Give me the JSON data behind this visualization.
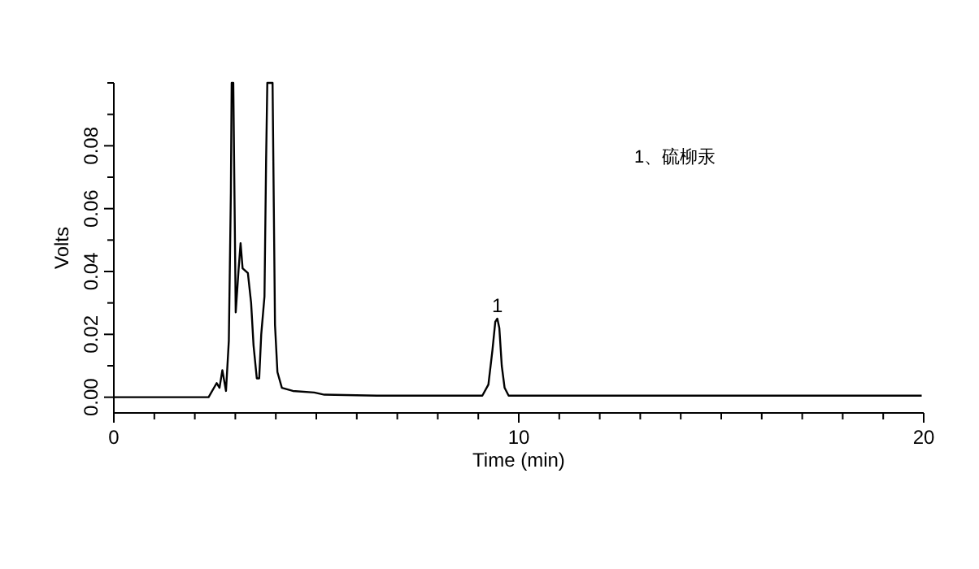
{
  "chart_data": {
    "type": "line",
    "xlabel": "Time (min)",
    "ylabel": "Volts",
    "x": [
      0,
      2.34,
      2.54,
      2.61,
      2.68,
      2.77,
      2.84,
      2.89,
      2.91,
      2.95,
      3.01,
      3.08,
      3.13,
      3.18,
      3.31,
      3.39,
      3.45,
      3.53,
      3.59,
      3.64,
      3.72,
      3.76,
      3.79,
      3.92,
      3.98,
      4.04,
      4.15,
      4.42,
      4.95,
      5.2,
      6.5,
      7.5,
      9.1,
      9.25,
      9.35,
      9.42,
      9.47,
      9.52,
      9.58,
      9.65,
      9.75,
      19.95
    ],
    "series": [
      {
        "color": "#000000",
        "values": [
          0,
          0,
          0.0045,
          0.003,
          0.0086,
          0.002,
          0.018,
          0.065,
          0.1,
          0.1,
          0.027,
          0.0405,
          0.049,
          0.041,
          0.0395,
          0.03,
          0.0165,
          0.006,
          0.006,
          0.02,
          0.032,
          0.075,
          0.1,
          0.1,
          0.023,
          0.008,
          0.003,
          0.002,
          0.0015,
          0.0008,
          0.0005,
          0.0005,
          0.0005,
          0.004,
          0.015,
          0.024,
          0.025,
          0.022,
          0.01,
          0.003,
          0.0005,
          0.0005
        ]
      }
    ],
    "xlim": [
      0,
      20
    ],
    "xticks": [
      0,
      {
        "value": 1,
        "label": null
      },
      {
        "value": 2,
        "label": null
      },
      {
        "value": 3,
        "label": null
      },
      {
        "value": 4,
        "label": null
      },
      {
        "value": 5,
        "label": null
      },
      {
        "value": 6,
        "label": null
      },
      {
        "value": 7,
        "label": null
      },
      {
        "value": 8,
        "label": null
      },
      {
        "value": 9,
        "label": null
      },
      10,
      {
        "value": 11,
        "label": null
      },
      {
        "value": 12,
        "label": null
      },
      {
        "value": 13,
        "label": null
      },
      {
        "value": 14,
        "label": null
      },
      {
        "value": 15,
        "label": null
      },
      {
        "value": 16,
        "label": null
      },
      {
        "value": 17,
        "label": null
      },
      {
        "value": 18,
        "label": null
      },
      {
        "value": 19,
        "label": null
      },
      20
    ],
    "ylim": [
      -0.005,
      0.1
    ],
    "yticks": [
      {
        "value": 0,
        "label": "0.00"
      },
      {
        "value": 0.01,
        "label": null
      },
      {
        "value": 0.02,
        "label": "0.02"
      },
      {
        "value": 0.03,
        "label": null
      },
      {
        "value": 0.04,
        "label": "0.04"
      },
      {
        "value": 0.05,
        "label": null
      },
      {
        "value": 0.06,
        "label": "0.06"
      },
      {
        "value": 0.07,
        "label": null
      },
      {
        "value": 0.08,
        "label": "0.08"
      },
      {
        "value": 0.09,
        "label": null
      },
      {
        "value": 0.1,
        "label": null
      }
    ],
    "annotations": [
      {
        "text": "1",
        "x": 9.47,
        "y": 0.025
      },
      "1、硫柳汞"
    ],
    "marker": "none",
    "line_style": "solid"
  }
}
